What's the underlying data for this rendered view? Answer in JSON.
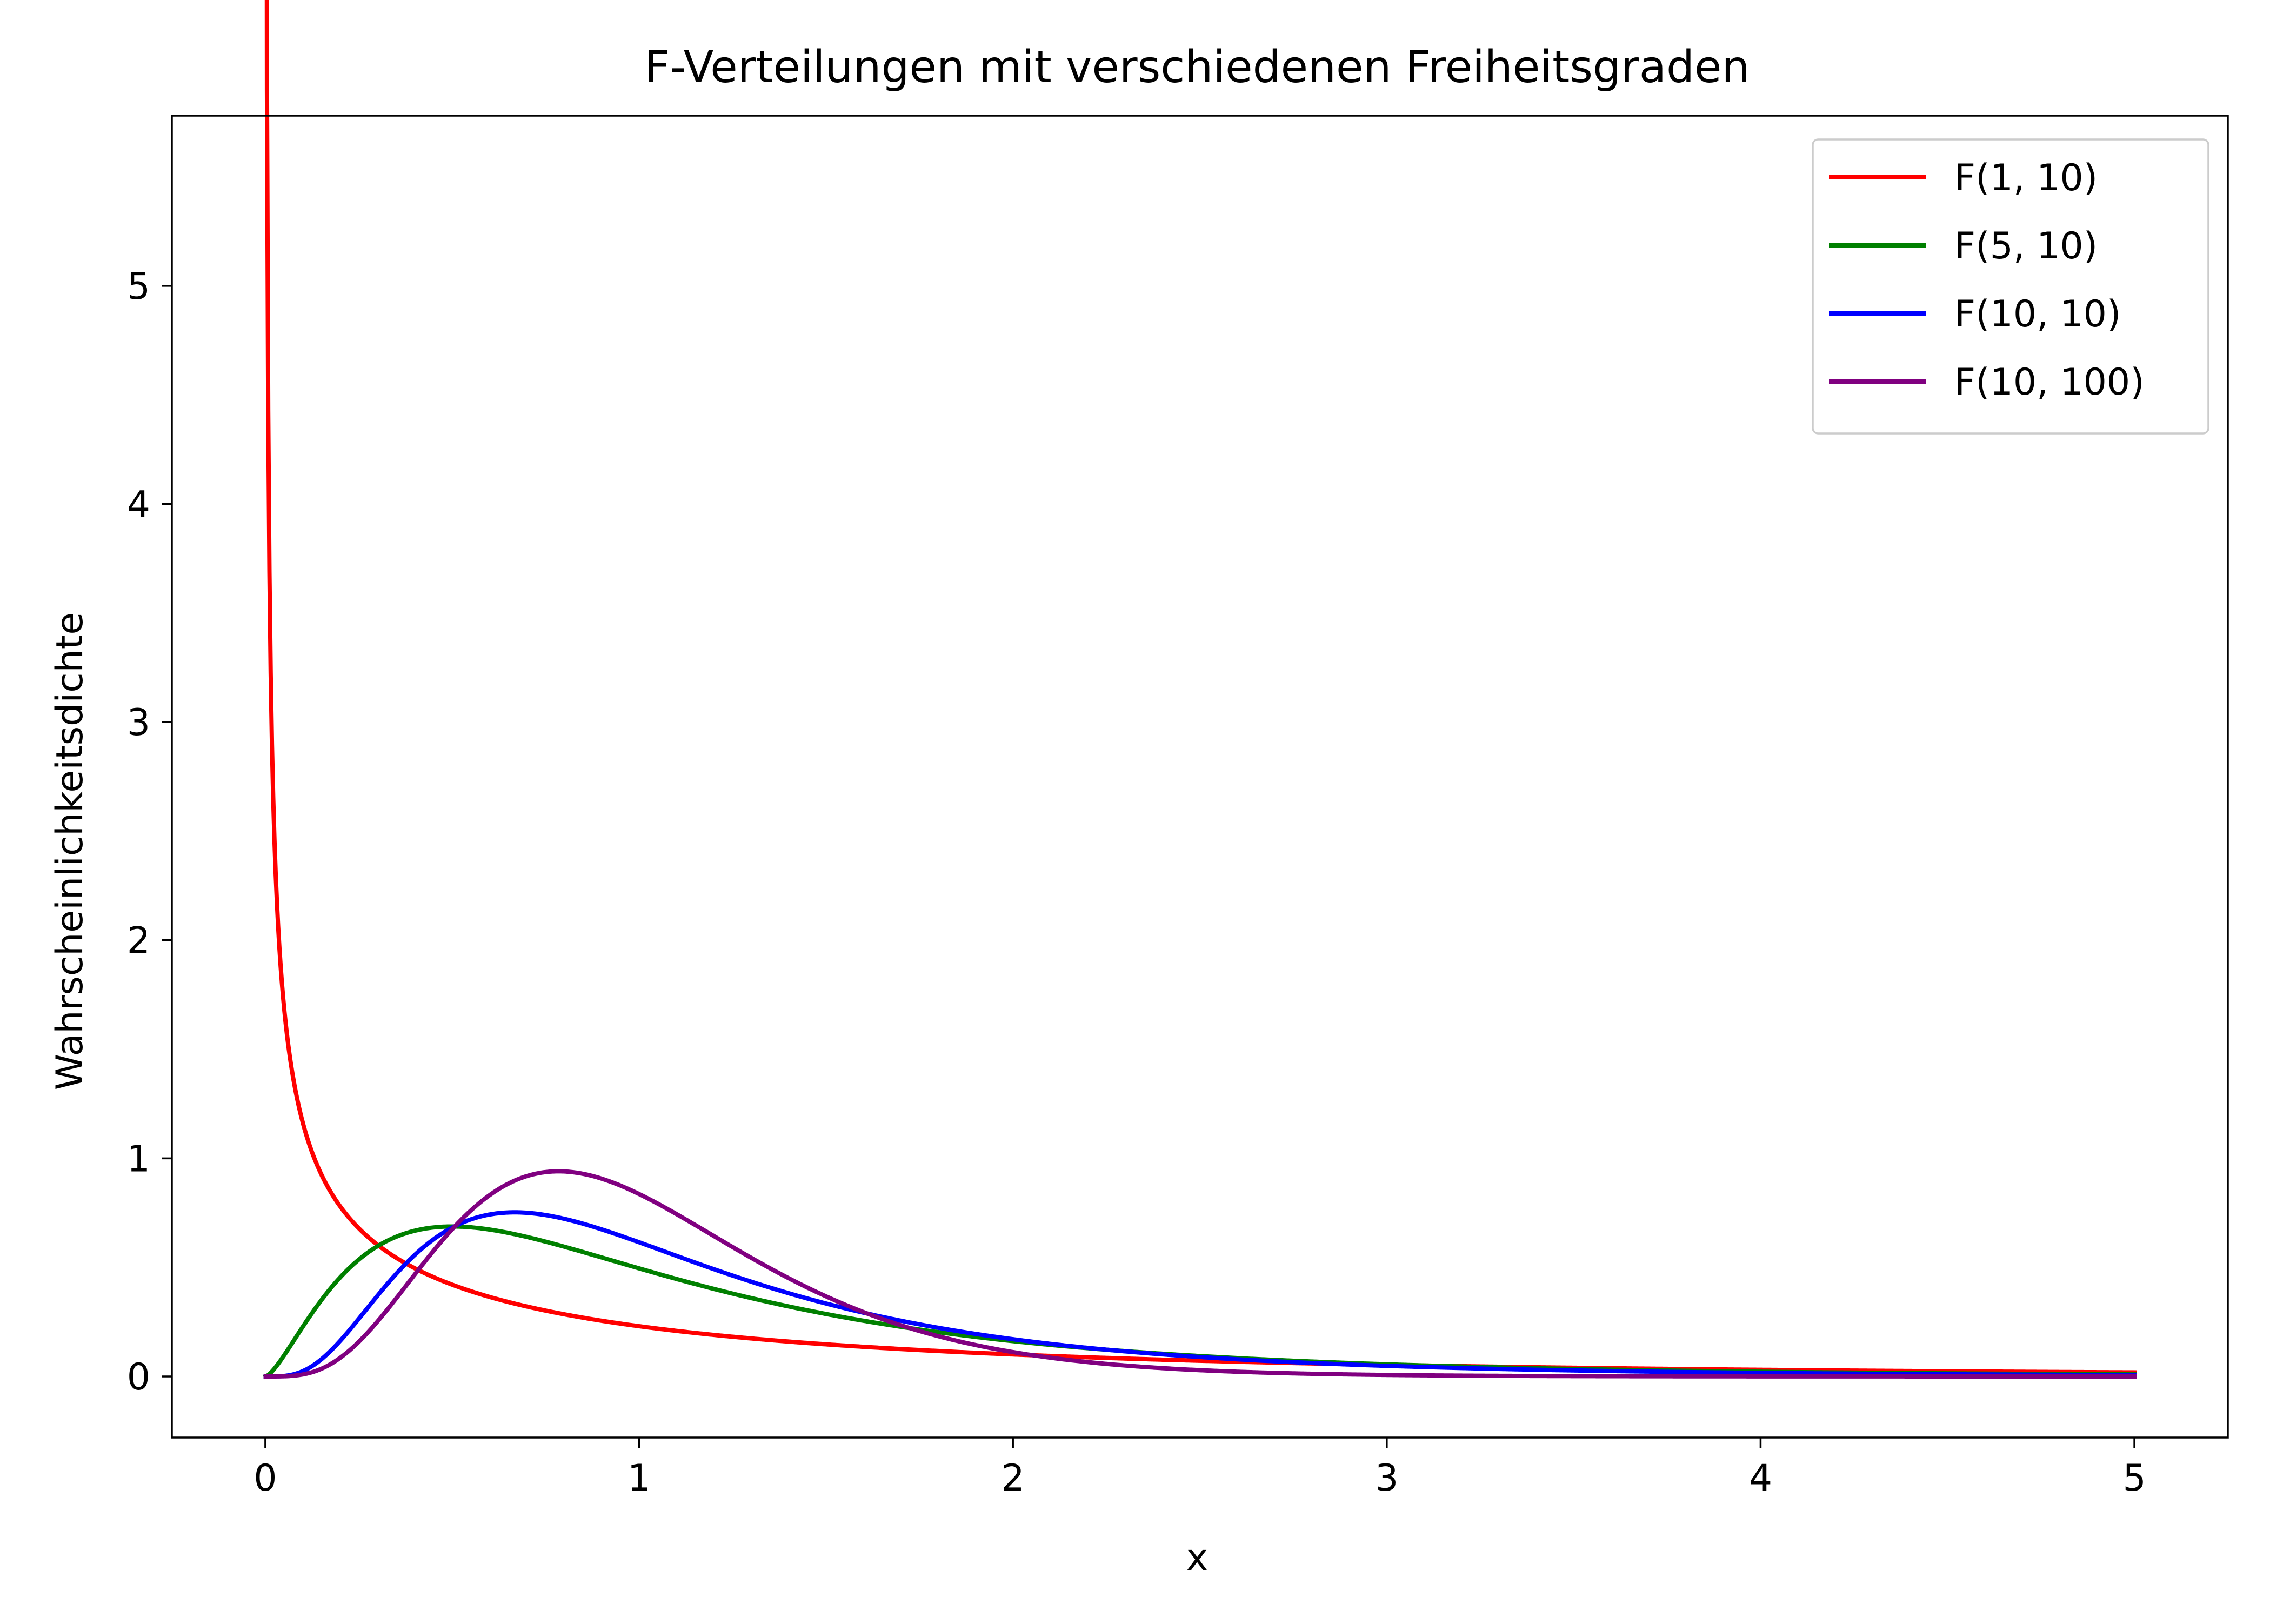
{
  "chart_data": {
    "type": "line",
    "title": "F-Verteilungen mit verschiedenen Freiheitsgraden",
    "xlabel": "x",
    "ylabel": "Wahrscheinlichkeitsdichte",
    "xlim": [
      -0.25,
      5.25
    ],
    "ylim": [
      -0.28,
      5.78
    ],
    "x_ticks": [
      0,
      1,
      2,
      3,
      4,
      5
    ],
    "x_tick_labels": [
      "0",
      "1",
      "2",
      "3",
      "4",
      "5"
    ],
    "y_ticks": [
      0,
      1,
      2,
      3,
      4,
      5
    ],
    "y_tick_labels": [
      "0",
      "1",
      "2",
      "3",
      "4",
      "5"
    ],
    "x_range": [
      0.001,
      5
    ],
    "grid": false,
    "legend_position": "top-right",
    "series": [
      {
        "name": "F(1, 10)",
        "color": "#ff0000",
        "x": [
          0.01,
          0.02,
          0.05,
          0.1,
          0.2,
          0.3,
          0.5,
          0.75,
          1.0,
          1.5,
          2.0,
          3.0,
          4.0,
          5.0
        ],
        "y": [
          3.9,
          2.75,
          1.72,
          1.2,
          0.82,
          0.64,
          0.44,
          0.31,
          0.23,
          0.14,
          0.1,
          0.05,
          0.03,
          0.02
        ]
      },
      {
        "name": "F(5, 10)",
        "color": "#008000",
        "x": [
          0.1,
          0.2,
          0.3,
          0.5,
          0.75,
          1.0,
          1.5,
          2.0,
          3.0,
          4.0,
          5.0
        ],
        "y": [
          0.26,
          0.48,
          0.61,
          0.68,
          0.62,
          0.5,
          0.29,
          0.16,
          0.05,
          0.02,
          0.01
        ]
      },
      {
        "name": "F(10, 10)",
        "color": "#0000ff",
        "x": [
          0.1,
          0.2,
          0.3,
          0.5,
          0.67,
          1.0,
          1.5,
          2.0,
          3.0,
          4.0,
          5.0
        ],
        "y": [
          0.02,
          0.16,
          0.37,
          0.68,
          0.75,
          0.61,
          0.31,
          0.15,
          0.04,
          0.01,
          0.005
        ]
      },
      {
        "name": "F(10, 100)",
        "color": "#800080",
        "x": [
          0.1,
          0.2,
          0.3,
          0.5,
          0.78,
          1.0,
          1.5,
          2.0,
          2.5,
          3.0,
          4.0,
          5.0
        ],
        "y": [
          0.01,
          0.07,
          0.23,
          0.63,
          0.95,
          0.87,
          0.39,
          0.11,
          0.03,
          0.01,
          0.002,
          0.0
        ]
      }
    ]
  }
}
